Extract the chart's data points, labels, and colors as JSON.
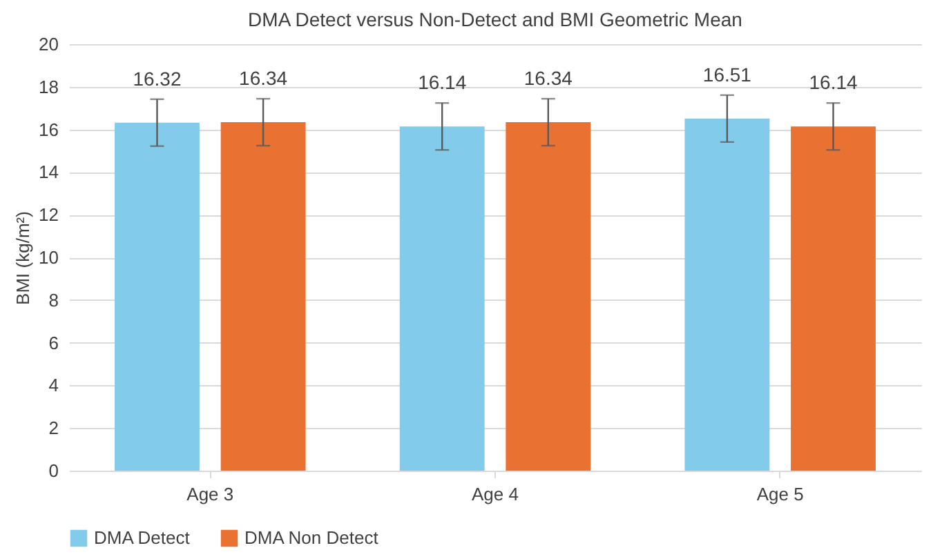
{
  "chart_data": {
    "type": "bar",
    "title": "DMA Detect versus Non-Detect and BMI Geometric Mean",
    "ylabel": "BMI (kg/m²)",
    "categories": [
      "Age 3",
      "Age 4",
      "Age 5"
    ],
    "series": [
      {
        "name": "DMA Detect",
        "color": "#83cbeb",
        "values": [
          16.32,
          16.14,
          16.51
        ],
        "errors": [
          1.1,
          1.1,
          1.1
        ]
      },
      {
        "name": "DMA Non Detect",
        "color": "#e97132",
        "values": [
          16.34,
          16.34,
          16.14
        ],
        "errors": [
          1.1,
          1.1,
          1.1
        ]
      }
    ],
    "ylim": [
      0,
      20
    ],
    "yticks": [
      0,
      2,
      4,
      6,
      8,
      10,
      12,
      14,
      16,
      18,
      20
    ],
    "grid": "y",
    "legend": "bottom",
    "data_labels": true
  }
}
